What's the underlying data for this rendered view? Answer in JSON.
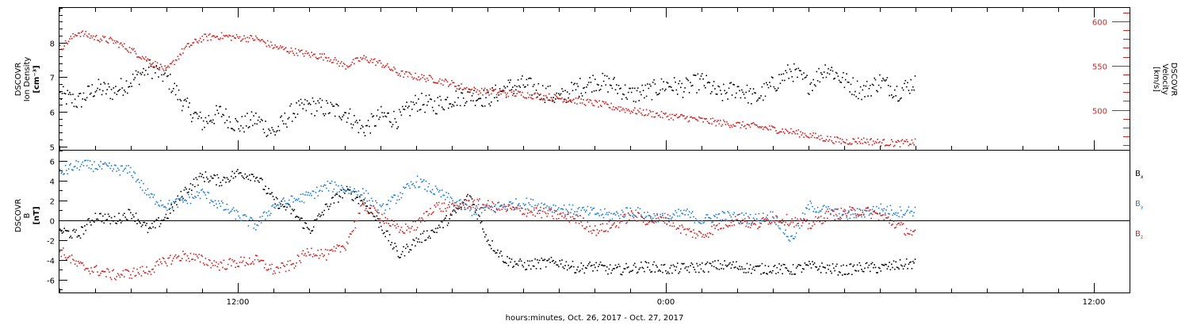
{
  "colors": {
    "black": "#000000",
    "red": "#d42222",
    "blue": "#1f7fd6"
  },
  "chart_data": [
    {
      "type": "scatter",
      "ylabel_line1": "DSCOVR",
      "ylabel_line2": "Ion Density",
      "ylabel_units": "[cm⁻³]",
      "y_ticks": [
        "5",
        "6",
        "7",
        "8"
      ],
      "ylim": [
        4.9,
        9.0
      ],
      "right_ylabel_line1": "DSCOVR",
      "right_ylabel_line2": "Velocity",
      "right_ylabel_units": "[km/s]",
      "right_y_ticks": [
        "500",
        "550",
        "600"
      ],
      "right_ylim": [
        455,
        615
      ],
      "x_range_hours": [
        7,
        37
      ],
      "series": [
        {
          "key": "density",
          "axis": "left",
          "color": "#000000",
          "x": [
            7.0,
            7.5,
            8.0,
            8.5,
            9.0,
            9.5,
            10.0,
            10.5,
            11.0,
            11.5,
            12.0,
            12.5,
            13.0,
            13.5,
            14.0,
            14.5,
            15.0,
            15.5,
            16.0,
            16.5,
            17.0,
            17.5,
            18.0,
            18.5,
            19.0,
            19.5,
            20.0,
            20.5,
            21.0,
            21.5,
            22.0,
            22.5,
            23.0,
            23.5,
            24.0,
            24.5,
            25.0,
            25.5,
            26.0,
            26.5,
            27.0,
            27.5,
            28.0,
            28.5,
            29.0,
            29.5,
            30.0,
            30.5,
            31.0
          ],
          "y": [
            6.5,
            6.3,
            6.7,
            6.6,
            6.9,
            7.3,
            7.0,
            6.2,
            5.7,
            6.0,
            5.6,
            5.8,
            5.4,
            6.0,
            6.2,
            6.1,
            6.0,
            5.5,
            5.9,
            5.8,
            6.3,
            6.2,
            6.4,
            6.5,
            6.4,
            6.7,
            6.8,
            6.6,
            6.4,
            6.7,
            6.9,
            6.8,
            6.5,
            6.6,
            6.8,
            6.7,
            6.9,
            6.5,
            6.7,
            6.4,
            6.8,
            7.2,
            6.8,
            7.3,
            6.9,
            6.6,
            6.9,
            6.6,
            6.9
          ]
        },
        {
          "key": "velocity",
          "axis": "right",
          "color": "#d42222",
          "x": [
            7.0,
            7.5,
            8.0,
            8.5,
            9.0,
            9.5,
            10.0,
            10.5,
            11.0,
            11.5,
            12.0,
            12.5,
            13.0,
            13.5,
            14.0,
            14.5,
            15.0,
            15.5,
            16.0,
            16.5,
            17.0,
            17.5,
            18.0,
            18.5,
            19.0,
            19.5,
            20.0,
            20.5,
            21.0,
            21.5,
            22.0,
            22.5,
            23.0,
            23.5,
            24.0,
            24.5,
            25.0,
            25.5,
            26.0,
            26.5,
            27.0,
            27.5,
            28.0,
            28.5,
            29.0,
            29.5,
            30.0,
            30.5,
            31.0
          ],
          "y": [
            570,
            588,
            582,
            578,
            568,
            556,
            545,
            570,
            582,
            584,
            582,
            581,
            572,
            567,
            563,
            560,
            550,
            559,
            553,
            542,
            538,
            535,
            530,
            523,
            521,
            520,
            518,
            516,
            514,
            511,
            508,
            504,
            500,
            497,
            494,
            492,
            489,
            486,
            484,
            482,
            479,
            476,
            472,
            468,
            465,
            466,
            464,
            463,
            464
          ]
        }
      ]
    },
    {
      "type": "scatter",
      "ylabel_line1": "DSCOVR",
      "ylabel_line2": "B",
      "ylabel_units": "[nT]",
      "y_ticks": [
        "-6",
        "-4",
        "-2",
        "0",
        "2",
        "4",
        "6"
      ],
      "ylim": [
        -7.3,
        7.0
      ],
      "zero_line": 0,
      "x_range_hours": [
        7,
        37
      ],
      "x_ticks": [
        "12:00",
        "0:00",
        "12:00"
      ],
      "x_tick_hours": [
        12,
        24,
        36
      ],
      "xlabel": "hours:minutes, Oct. 26, 2017 - Oct. 27, 2017",
      "legend": [
        {
          "label": "B",
          "sub": "x",
          "color": "#000000"
        },
        {
          "label": "B",
          "sub": "y",
          "color": "#1f7fd6"
        },
        {
          "label": "B",
          "sub": "z",
          "color": "#d42222"
        }
      ],
      "series": [
        {
          "key": "Bx",
          "color": "#000000",
          "x": [
            7.0,
            7.5,
            8.0,
            8.5,
            9.0,
            9.5,
            10.0,
            10.5,
            11.0,
            11.5,
            12.0,
            12.5,
            13.0,
            13.5,
            14.0,
            14.5,
            15.0,
            15.5,
            16.0,
            16.5,
            17.0,
            17.5,
            18.0,
            18.5,
            19.0,
            19.5,
            20.0,
            20.5,
            21.0,
            21.5,
            22.0,
            22.5,
            23.0,
            23.5,
            24.0,
            24.5,
            25.0,
            25.5,
            26.0,
            26.5,
            27.0,
            27.5,
            28.0,
            28.5,
            29.0,
            29.5,
            30.0,
            30.5,
            31.0
          ],
          "y": [
            -1.0,
            -1.5,
            0.5,
            0.0,
            0.8,
            -1.0,
            0.5,
            3.0,
            4.5,
            4.0,
            4.8,
            4.5,
            2.0,
            1.0,
            -1.0,
            1.5,
            3.0,
            2.0,
            -0.5,
            -3.5,
            -2.0,
            -1.0,
            0.5,
            2.5,
            -2.0,
            -4.0,
            -4.5,
            -4.3,
            -4.2,
            -4.8,
            -4.6,
            -5.0,
            -4.8,
            -4.6,
            -4.9,
            -4.8,
            -4.7,
            -4.5,
            -4.6,
            -4.9,
            -4.8,
            -5.0,
            -4.6,
            -4.8,
            -5.0,
            -4.7,
            -4.8,
            -4.5,
            -4.3
          ]
        },
        {
          "key": "By",
          "color": "#1f7fd6",
          "x": [
            7.0,
            7.5,
            8.0,
            8.5,
            9.0,
            9.5,
            10.0,
            10.5,
            11.0,
            11.5,
            12.0,
            12.5,
            13.0,
            13.5,
            14.0,
            14.5,
            15.0,
            15.5,
            16.0,
            16.5,
            17.0,
            17.5,
            18.0,
            18.5,
            19.0,
            19.5,
            20.0,
            20.5,
            21.0,
            21.5,
            22.0,
            22.5,
            23.0,
            23.5,
            24.0,
            24.5,
            25.0,
            25.5,
            26.0,
            26.5,
            27.0,
            27.5,
            28.0,
            28.5,
            29.0,
            29.5,
            30.0,
            30.5,
            31.0
          ],
          "y": [
            4.8,
            5.6,
            5.5,
            5.2,
            5.0,
            2.5,
            1.5,
            2.0,
            2.8,
            1.5,
            0.5,
            -0.5,
            1.5,
            2.0,
            2.5,
            3.5,
            3.2,
            2.8,
            1.0,
            2.5,
            4.0,
            3.0,
            2.0,
            1.0,
            1.2,
            1.5,
            1.8,
            1.5,
            1.2,
            1.0,
            0.8,
            0.5,
            1.0,
            0.5,
            0.2,
            0.8,
            0.0,
            0.5,
            0.3,
            0.2,
            0.5,
            -2.0,
            1.5,
            1.0,
            0.5,
            0.8,
            1.2,
            0.9,
            1.0
          ]
        },
        {
          "key": "Bz",
          "color": "#d42222",
          "x": [
            7.0,
            7.5,
            8.0,
            8.5,
            9.0,
            9.5,
            10.0,
            10.5,
            11.0,
            11.5,
            12.0,
            12.5,
            13.0,
            13.5,
            14.0,
            14.5,
            15.0,
            15.5,
            16.0,
            16.5,
            17.0,
            17.5,
            18.0,
            18.5,
            19.0,
            19.5,
            20.0,
            20.5,
            21.0,
            21.5,
            22.0,
            22.5,
            23.0,
            23.5,
            24.0,
            24.5,
            25.0,
            25.5,
            26.0,
            26.5,
            27.0,
            27.5,
            28.0,
            28.5,
            29.0,
            29.5,
            30.0,
            30.5,
            31.0
          ],
          "y": [
            -3.0,
            -4.5,
            -5.0,
            -5.5,
            -5.3,
            -5.0,
            -4.0,
            -3.5,
            -4.0,
            -4.5,
            -4.2,
            -4.0,
            -5.0,
            -4.5,
            -3.0,
            -3.5,
            -2.5,
            1.5,
            0.5,
            -1.0,
            -0.5,
            1.5,
            1.2,
            1.8,
            1.5,
            1.2,
            1.0,
            0.8,
            0.5,
            0.2,
            -1.0,
            -0.5,
            0.5,
            0.0,
            0.2,
            -1.0,
            -1.5,
            -0.5,
            0.2,
            -0.5,
            0.3,
            0.0,
            -0.5,
            0.5,
            0.8,
            1.0,
            0.5,
            -0.5,
            -1.5
          ]
        }
      ]
    }
  ]
}
